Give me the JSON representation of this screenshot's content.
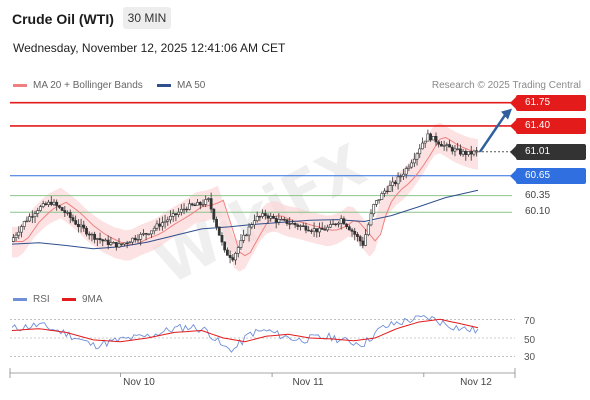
{
  "header": {
    "instrument": "Crude Oil (WTI)",
    "timeframe": "30 MIN",
    "datetime": "Wednesday, November 12, 2025 12:41:06 AM CET"
  },
  "legend": {
    "ma20": {
      "label": "MA 20 + Bollinger Bands",
      "color": "#f08080"
    },
    "ma50": {
      "label": "MA 50",
      "color": "#2f4f8f"
    }
  },
  "credit": "Research © 2025 Trading Central",
  "watermark": "WikiFX",
  "colors": {
    "resistance": "#e31b1b",
    "pivot": "#2f6fe0",
    "support": "#8bc48b",
    "current": "#333333",
    "arrow": "#2f5f9f",
    "candle": "#333333",
    "bollinger_fill": "#fbd6d6",
    "rsi": "#6f8fd8",
    "rsi_ma": "#e31b1b"
  },
  "levels": [
    {
      "value": "61.75",
      "kind": "resistance",
      "style": "boxed"
    },
    {
      "value": "61.40",
      "kind": "resistance",
      "style": "boxed"
    },
    {
      "value": "61.01",
      "kind": "current",
      "style": "boxed"
    },
    {
      "value": "60.65",
      "kind": "pivot",
      "style": "boxed"
    },
    {
      "value": "60.35",
      "kind": "support",
      "style": "plain"
    },
    {
      "value": "60.10",
      "kind": "support",
      "style": "plain"
    }
  ],
  "indicator_legend": {
    "rsi": {
      "label": "RSI",
      "color": "#6f8fd8"
    },
    "ma9": {
      "label": "9MA",
      "color": "#e31b1b"
    }
  },
  "rsi_ticks": [
    "70",
    "50",
    "30"
  ],
  "x_ticks": [
    "Nov 10",
    "Nov 11",
    "Nov 12"
  ],
  "chart_data": {
    "type": "candlestick",
    "ylim": [
      59.05,
      61.85
    ],
    "levels": {
      "resistance": [
        61.75,
        61.4
      ],
      "current": 61.01,
      "pivot": 60.65,
      "support": [
        60.35,
        60.1
      ]
    },
    "price_path": [
      [
        0,
        59.66
      ],
      [
        5,
        59.95
      ],
      [
        10,
        60.15
      ],
      [
        15,
        60.25
      ],
      [
        20,
        60.1
      ],
      [
        25,
        59.9
      ],
      [
        30,
        59.75
      ],
      [
        35,
        59.65
      ],
      [
        40,
        59.6
      ],
      [
        45,
        59.7
      ],
      [
        50,
        59.78
      ],
      [
        55,
        59.92
      ],
      [
        60,
        60.04
      ],
      [
        65,
        60.18
      ],
      [
        70,
        60.22
      ],
      [
        73,
        60.28
      ],
      [
        76,
        59.9
      ],
      [
        79,
        59.5
      ],
      [
        82,
        59.42
      ],
      [
        86,
        59.72
      ],
      [
        90,
        60.0
      ],
      [
        94,
        60.06
      ],
      [
        98,
        59.98
      ],
      [
        102,
        59.95
      ],
      [
        106,
        59.9
      ],
      [
        110,
        59.86
      ],
      [
        114,
        59.82
      ],
      [
        118,
        59.88
      ],
      [
        122,
        60.0
      ],
      [
        126,
        59.82
      ],
      [
        130,
        59.62
      ],
      [
        134,
        60.2
      ],
      [
        138,
        60.42
      ],
      [
        142,
        60.55
      ],
      [
        146,
        60.75
      ],
      [
        150,
        61.0
      ],
      [
        152,
        61.15
      ],
      [
        154,
        61.25
      ],
      [
        157,
        61.18
      ],
      [
        160,
        61.1
      ],
      [
        163,
        61.05
      ],
      [
        166,
        61.0
      ],
      [
        169,
        60.98
      ],
      [
        172,
        61.01
      ]
    ],
    "ma50_path": [
      [
        0,
        59.62
      ],
      [
        10,
        59.64
      ],
      [
        20,
        59.6
      ],
      [
        30,
        59.55
      ],
      [
        40,
        59.58
      ],
      [
        50,
        59.65
      ],
      [
        60,
        59.75
      ],
      [
        70,
        59.85
      ],
      [
        80,
        59.88
      ],
      [
        90,
        59.92
      ],
      [
        100,
        59.95
      ],
      [
        110,
        59.98
      ],
      [
        120,
        59.99
      ],
      [
        130,
        59.96
      ],
      [
        140,
        60.05
      ],
      [
        150,
        60.18
      ],
      [
        160,
        60.32
      ],
      [
        172,
        60.43
      ]
    ],
    "rsi": {
      "ylim": [
        20,
        80
      ],
      "ticks": [
        70,
        50,
        30
      ],
      "values": [
        [
          0,
          60
        ],
        [
          10,
          64
        ],
        [
          20,
          55
        ],
        [
          30,
          42
        ],
        [
          40,
          48
        ],
        [
          50,
          52
        ],
        [
          60,
          60
        ],
        [
          66,
          62
        ],
        [
          72,
          58
        ],
        [
          78,
          40
        ],
        [
          82,
          38
        ],
        [
          88,
          55
        ],
        [
          94,
          58
        ],
        [
          100,
          52
        ],
        [
          106,
          48
        ],
        [
          112,
          50
        ],
        [
          118,
          51
        ],
        [
          124,
          46
        ],
        [
          130,
          44
        ],
        [
          136,
          60
        ],
        [
          142,
          66
        ],
        [
          148,
          70
        ],
        [
          154,
          72
        ],
        [
          160,
          65
        ],
        [
          166,
          60
        ],
        [
          172,
          58
        ]
      ],
      "ma9": [
        [
          0,
          58
        ],
        [
          10,
          60
        ],
        [
          20,
          56
        ],
        [
          30,
          48
        ],
        [
          40,
          46
        ],
        [
          50,
          50
        ],
        [
          60,
          56
        ],
        [
          70,
          58
        ],
        [
          78,
          50
        ],
        [
          86,
          46
        ],
        [
          94,
          52
        ],
        [
          102,
          54
        ],
        [
          110,
          50
        ],
        [
          118,
          49
        ],
        [
          126,
          47
        ],
        [
          134,
          50
        ],
        [
          142,
          60
        ],
        [
          150,
          67
        ],
        [
          158,
          70
        ],
        [
          166,
          65
        ],
        [
          172,
          61
        ]
      ]
    },
    "x_tick_positions": [
      40,
      96,
      152
    ],
    "n_bars": 172
  }
}
